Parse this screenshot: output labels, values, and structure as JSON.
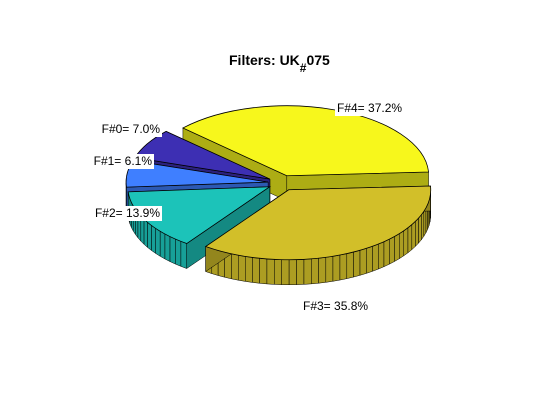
{
  "chart_data": {
    "type": "pie",
    "title_main": "Filters:  UK",
    "title_sub": "#",
    "title_tail": "075",
    "slices": [
      {
        "label": "F#0= 7.0%",
        "value": 7.0,
        "color": "#3d2fb3",
        "exploded": true
      },
      {
        "label": "F#1= 6.1%",
        "value": 6.1,
        "color": "#3f7fff",
        "exploded": true
      },
      {
        "label": "F#2= 13.9%",
        "value": 13.9,
        "color": "#1cc3b9",
        "exploded": true
      },
      {
        "label": "F#3= 35.8%",
        "value": 35.8,
        "color": "#d2bf29",
        "exploded": true
      },
      {
        "label": "F#4= 37.2%",
        "value": 37.2,
        "color": "#f7f71c",
        "exploded": true
      }
    ],
    "legend": "none",
    "grid": false
  }
}
